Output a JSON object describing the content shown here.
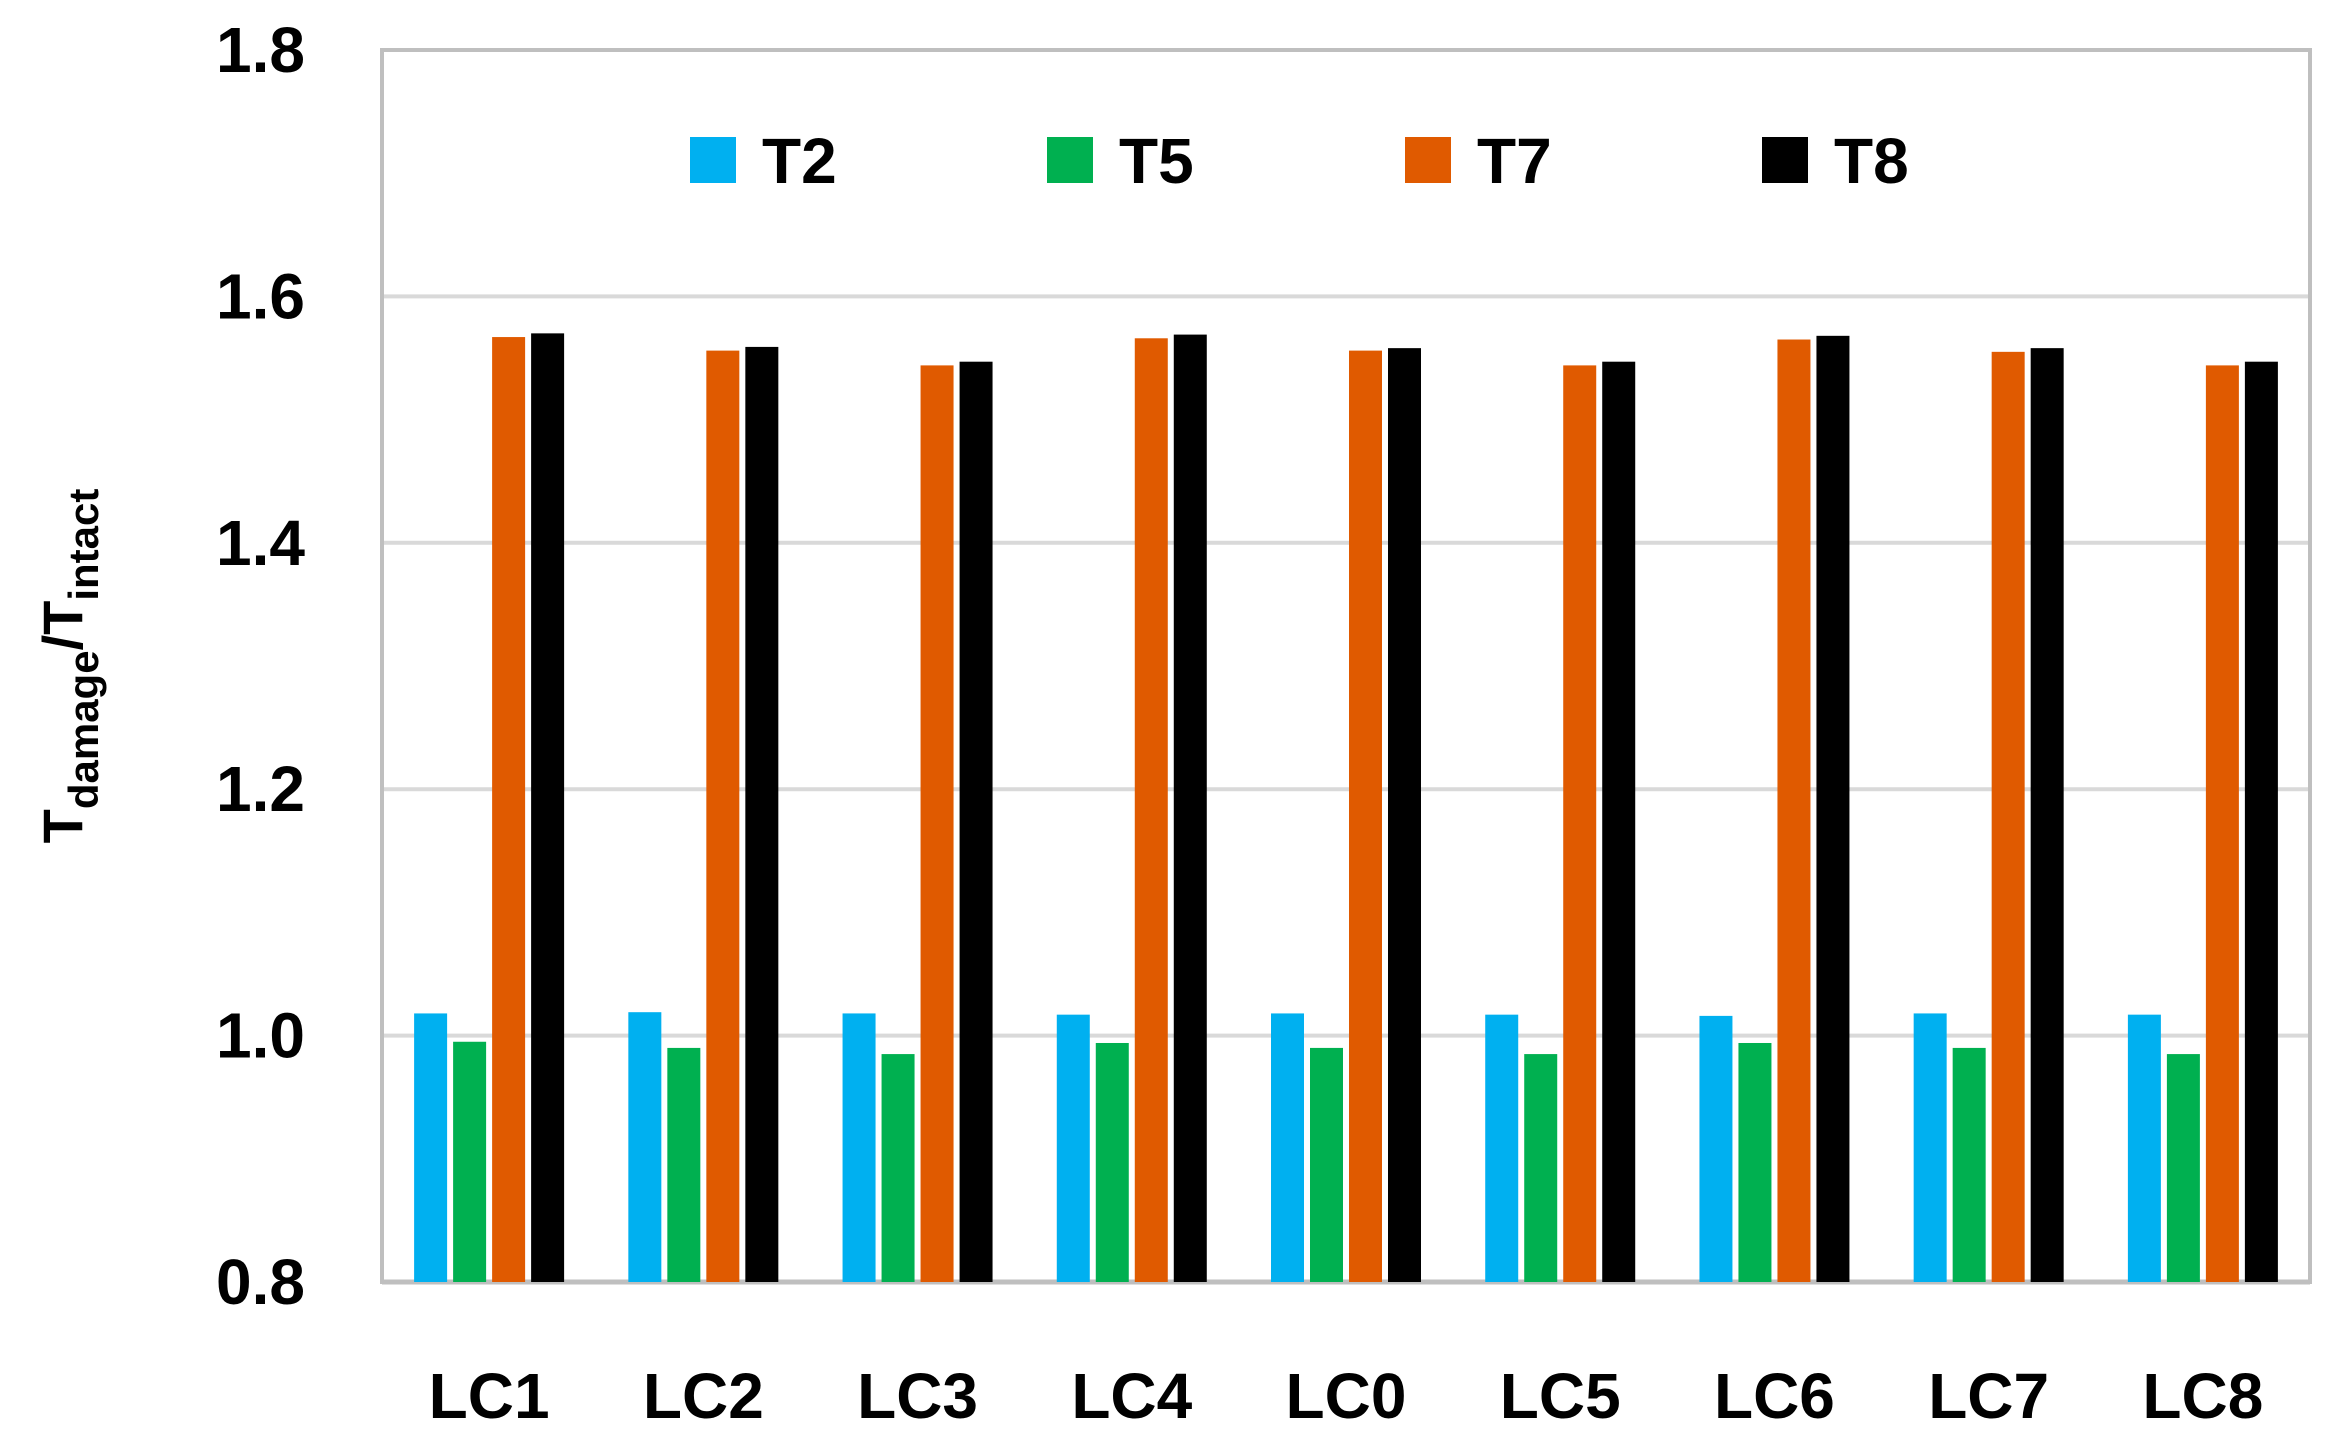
{
  "chart_data": {
    "type": "bar",
    "title": "",
    "xlabel": "",
    "ylabel": {
      "main": "T",
      "sub1": "damage",
      "slash": "/",
      "sub2": "intact"
    },
    "ylim": [
      0.8,
      1.8
    ],
    "yticks": [
      0.8,
      1.0,
      1.2,
      1.4,
      1.6,
      1.8
    ],
    "ytick_labels": [
      "0.8",
      "1.0",
      "1.2",
      "1.4",
      "1.6",
      "1.8"
    ],
    "grid": true,
    "legend_position": "top",
    "categories": [
      "LC1",
      "LC2",
      "LC3",
      "LC4",
      "LC0",
      "LC5",
      "LC6",
      "LC7",
      "LC8"
    ],
    "series": [
      {
        "name": "T2",
        "color": "#00B0F0",
        "values": [
          1.018,
          1.019,
          1.018,
          1.017,
          1.018,
          1.017,
          1.016,
          1.018,
          1.017
        ]
      },
      {
        "name": "T5",
        "color": "#00B050",
        "values": [
          0.995,
          0.99,
          0.985,
          0.994,
          0.99,
          0.985,
          0.994,
          0.99,
          0.985
        ]
      },
      {
        "name": "T7",
        "color": "#E05A00",
        "values": [
          1.567,
          1.556,
          1.544,
          1.566,
          1.556,
          1.544,
          1.565,
          1.555,
          1.544
        ]
      },
      {
        "name": "T8",
        "color": "#000000",
        "values": [
          1.57,
          1.559,
          1.547,
          1.569,
          1.558,
          1.547,
          1.568,
          1.558,
          1.547
        ]
      }
    ]
  }
}
